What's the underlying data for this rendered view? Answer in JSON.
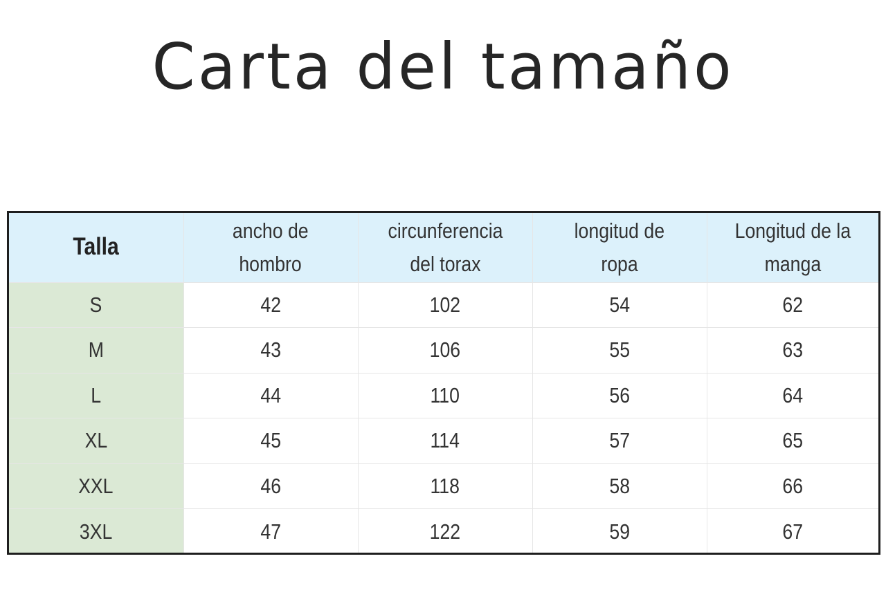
{
  "title": "Carta del tamaño",
  "table": {
    "headers": [
      {
        "line1": "Talla",
        "line2": ""
      },
      {
        "line1": "ancho de",
        "line2": "hombro"
      },
      {
        "line1": "circunferencia",
        "line2": "del torax"
      },
      {
        "line1": "longitud de",
        "line2": "ropa"
      },
      {
        "line1": "Longitud de la",
        "line2": "manga"
      }
    ],
    "rows": [
      [
        "S",
        "42",
        "102",
        "54",
        "62"
      ],
      [
        "M",
        "43",
        "106",
        "55",
        "63"
      ],
      [
        "L",
        "44",
        "110",
        "56",
        "64"
      ],
      [
        "XL",
        "45",
        "114",
        "57",
        "65"
      ],
      [
        "XXL",
        "46",
        "118",
        "58",
        "66"
      ],
      [
        "3XL",
        "47",
        "122",
        "59",
        "67"
      ]
    ]
  },
  "colors": {
    "header_bg": "#dcf1fb",
    "size_column_bg": "#dbe9d5",
    "border": "#1e1e1e",
    "text": "#333333"
  }
}
